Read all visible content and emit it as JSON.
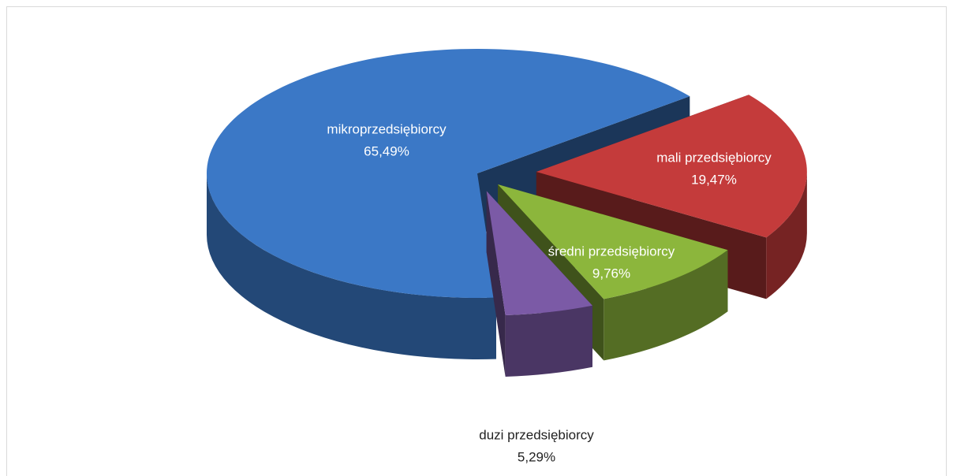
{
  "chart_data": {
    "type": "pie",
    "categories": [
      "mikroprzedsiębiorcy",
      "mali przedsiębiorcy",
      "średni przedsiębiorcy",
      "duzi przedsiębiorcy"
    ],
    "values": [
      65.49,
      19.47,
      9.76,
      5.29
    ],
    "value_labels": [
      "65,49%",
      "19,47%",
      "9,76%",
      "5,29%"
    ],
    "colors": [
      "#3b78c6",
      "#c43b3b",
      "#8cb63c",
      "#7b5aa6"
    ],
    "three_d": true
  }
}
